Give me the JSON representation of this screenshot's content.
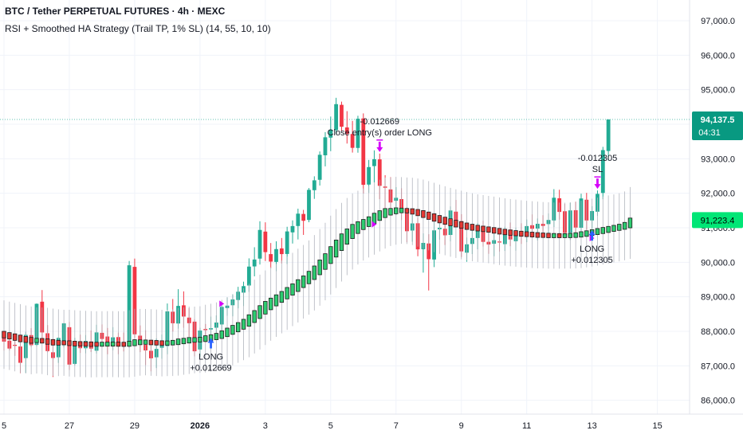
{
  "header": {
    "title": "BTC / Tether PERPETUAL FUTURES · 4h · MEXC",
    "strategy": "RSI + Smoothed HA Strategy (Trail TP, 1% SL) (14, 55, 10, 10)"
  },
  "colors": {
    "up": "#22ab94",
    "down": "#f23645",
    "ha_up": "#2ecc71",
    "ha_down": "#e53935",
    "wick": "#b2b5be",
    "long_arrow": "#2962ff",
    "exit_arrow": "#d500f9",
    "price_tag": "#089981",
    "ha_tag": "#00e676",
    "grid": "#f0f3fa",
    "text": "#131722"
  },
  "chart_data": {
    "type": "candlestick",
    "title": "BTC / Tether PERPETUAL FUTURES · 4h · MEXC",
    "ylim": [
      85600,
      97600
    ],
    "y_ticks": [
      "97,000.0",
      "96,000.0",
      "95,000.0",
      "94,000.0",
      "93,000.0",
      "92,000.0",
      "91,000.0",
      "90,000.0",
      "89,000.0",
      "88,000.0",
      "87,000.0",
      "86,000.0"
    ],
    "y_tick_values": [
      97000,
      96000,
      95000,
      94000,
      93000,
      92000,
      91000,
      90000,
      89000,
      88000,
      87000,
      86000
    ],
    "x_ticks": [
      {
        "label": "5",
        "bar": 0
      },
      {
        "label": "27",
        "bar": 12
      },
      {
        "label": "29",
        "bar": 24
      },
      {
        "label": "2026",
        "bar": 36
      },
      {
        "label": "3",
        "bar": 48
      },
      {
        "label": "5",
        "bar": 60
      },
      {
        "label": "7",
        "bar": 72
      },
      {
        "label": "9",
        "bar": 84
      },
      {
        "label": "11",
        "bar": 96
      },
      {
        "label": "13",
        "bar": 108
      },
      {
        "label": "15",
        "bar": 120
      }
    ],
    "last_price": {
      "value": 94137.5,
      "label": "94,137.5",
      "countdown": "04:31"
    },
    "ha_price": {
      "value": 91223.4,
      "label": "91,223.4"
    },
    "candles": [
      [
        87804,
        87933,
        87442,
        87701
      ],
      [
        87728,
        87939,
        87452,
        87500
      ],
      [
        87609,
        87784,
        87289,
        87578
      ],
      [
        87560,
        87694,
        86788,
        87087
      ],
      [
        87223,
        87985,
        86795,
        87896
      ],
      [
        87890,
        88091,
        87548,
        87597
      ],
      [
        87604,
        88806,
        87561,
        88797
      ],
      [
        88858,
        89195,
        87734,
        87967
      ],
      [
        87943,
        88180,
        87393,
        87427
      ],
      [
        87392,
        87785,
        86676,
        87226
      ],
      [
        87248,
        87827,
        87084,
        87808
      ],
      [
        87735,
        88238,
        87535,
        88230
      ],
      [
        88119,
        88270,
        86881,
        87036
      ],
      [
        87056,
        87809,
        87014,
        87707
      ],
      [
        87675,
        87905,
        87373,
        87510
      ],
      [
        87508,
        87891,
        87362,
        87722
      ],
      [
        87706,
        88025,
        87401,
        87498
      ],
      [
        87438,
        88189,
        87357,
        87968
      ],
      [
        87956,
        88199,
        87585,
        87778
      ],
      [
        87849,
        88097,
        87335,
        87643
      ],
      [
        87570,
        88119,
        87449,
        87825
      ],
      [
        87832,
        87963,
        87335,
        87626
      ],
      [
        87641,
        87964,
        87416,
        87586
      ],
      [
        87627,
        90038,
        87519,
        89913
      ],
      [
        89867,
        90107,
        87818,
        87913
      ],
      [
        87874,
        88170,
        87397,
        87644
      ],
      [
        87607,
        88030,
        87022,
        87446
      ],
      [
        87436,
        87708,
        86840,
        87217
      ],
      [
        87247,
        87794,
        86934,
        87489
      ],
      [
        87523,
        87908,
        87204,
        87614
      ],
      [
        87571,
        88806,
        87335,
        88577
      ],
      [
        88568,
        88936,
        87992,
        88233
      ],
      [
        88225,
        89220,
        88078,
        88736
      ],
      [
        88753,
        89157,
        88102,
        88428
      ],
      [
        88397,
        88674,
        87845,
        88235
      ],
      [
        88280,
        88350,
        87274,
        87421
      ],
      [
        87473,
        88102,
        87257,
        88022
      ],
      [
        88067,
        88211,
        87677,
        88035
      ],
      [
        88053,
        88426,
        87851,
        88090
      ],
      [
        88104,
        88461,
        87913,
        88254
      ],
      [
        88198,
        88837,
        87925,
        88709
      ],
      [
        88674,
        88981,
        88450,
        88744
      ],
      [
        88755,
        89071,
        88434,
        88923
      ],
      [
        88907,
        89289,
        88665,
        89148
      ],
      [
        89121,
        89438,
        88732,
        89309
      ],
      [
        89327,
        90114,
        89143,
        89875
      ],
      [
        89880,
        90436,
        89592,
        90080
      ],
      [
        90106,
        91189,
        89935,
        90937
      ],
      [
        90889,
        91158,
        90037,
        90294
      ],
      [
        90237,
        90558,
        89826,
        90020
      ],
      [
        90011,
        90609,
        89742,
        90383
      ],
      [
        90402,
        90704,
        89966,
        90237
      ],
      [
        90241,
        91029,
        89949,
        90894
      ],
      [
        90867,
        91214,
        90543,
        91049
      ],
      [
        91051,
        91553,
        90662,
        91409
      ],
      [
        91400,
        91519,
        90793,
        91203
      ],
      [
        91227,
        92152,
        91160,
        92099
      ],
      [
        92089,
        92491,
        91838,
        92375
      ],
      [
        92390,
        93212,
        92224,
        93115
      ],
      [
        93100,
        93771,
        92779,
        93622
      ],
      [
        93612,
        94223,
        93220,
        93834
      ],
      [
        93831,
        94766,
        93717,
        94582
      ],
      [
        94562,
        94655,
        93809,
        93928
      ],
      [
        93907,
        94380,
        93440,
        93723
      ],
      [
        93718,
        94097,
        93179,
        93316
      ],
      [
        93313,
        94245,
        93175,
        94160
      ],
      [
        94168,
        94314,
        91992,
        92246
      ],
      [
        92252,
        92966,
        92010,
        92759
      ],
      [
        92787,
        93244,
        92314,
        92987
      ],
      [
        92982,
        93150,
        91828,
        92215
      ],
      [
        92195,
        92524,
        91502,
        92160
      ],
      [
        92111,
        92466,
        91347,
        91733
      ],
      [
        91783,
        92178,
        91366,
        91869
      ],
      [
        91831,
        92145,
        91224,
        91478
      ],
      [
        91418,
        91598,
        90582,
        90900
      ],
      [
        90920,
        91375,
        90596,
        91126
      ],
      [
        91131,
        91290,
        90175,
        90374
      ],
      [
        90379,
        90838,
        89700,
        90562
      ],
      [
        90545,
        90813,
        89183,
        90090
      ],
      [
        90080,
        91173,
        89860,
        90925
      ],
      [
        90957,
        91346,
        90655,
        91001
      ],
      [
        90971,
        91254,
        90501,
        90782
      ],
      [
        90792,
        91618,
        90605,
        91501
      ],
      [
        91467,
        91808,
        91032,
        91200
      ],
      [
        91192,
        91394,
        90153,
        90316
      ],
      [
        90278,
        90717,
        90016,
        90521
      ],
      [
        90531,
        91008,
        90239,
        90703
      ],
      [
        90703,
        91136,
        90376,
        90924
      ],
      [
        90901,
        91203,
        90457,
        90591
      ],
      [
        90593,
        90877,
        90245,
        90516
      ],
      [
        90538,
        90850,
        90176,
        90641
      ],
      [
        90603,
        90853,
        90311,
        90573
      ],
      [
        90526,
        91030,
        90328,
        90896
      ],
      [
        90946,
        91152,
        90466,
        90661
      ],
      [
        90610,
        91005,
        90335,
        90895
      ],
      [
        90861,
        91130,
        90532,
        90767
      ],
      [
        90767,
        91239,
        90582,
        91049
      ],
      [
        91074,
        91388,
        90699,
        90971
      ],
      [
        90978,
        91269,
        90633,
        91115
      ],
      [
        91114,
        91364,
        90825,
        91053
      ],
      [
        91106,
        91414,
        90786,
        91226
      ],
      [
        91212,
        92119,
        91022,
        91870
      ],
      [
        91854,
        92102,
        91235,
        91459
      ],
      [
        91479,
        91694,
        90802,
        90852
      ],
      [
        90855,
        91726,
        90645,
        91503
      ],
      [
        91509,
        91754,
        90713,
        91006
      ],
      [
        91001,
        91987,
        90844,
        91849
      ],
      [
        91812,
        92011,
        90944,
        91212
      ],
      [
        91213,
        91626,
        90973,
        91485
      ],
      [
        91466,
        92081,
        91343,
        91982
      ],
      [
        92009,
        93345,
        91827,
        93251
      ],
      [
        93225,
        94124,
        92947,
        94137.5
      ]
    ],
    "smoothed_ha": [
      [
        87942,
        87867,
        false
      ],
      [
        87904,
        87834,
        false
      ],
      [
        87869,
        87795,
        false
      ],
      [
        87832,
        87753,
        false
      ],
      [
        87793,
        87735,
        false
      ],
      [
        87764,
        87711,
        false
      ],
      [
        87738,
        87733,
        true
      ],
      [
        87735,
        87716,
        false
      ],
      [
        87725,
        87683,
        false
      ],
      [
        87704,
        87659,
        false
      ],
      [
        87681,
        87657,
        false
      ],
      [
        87669,
        87665,
        false
      ],
      [
        87667,
        87644,
        false
      ],
      [
        87656,
        87632,
        false
      ],
      [
        87644,
        87632,
        false
      ],
      [
        87638,
        87625,
        false
      ],
      [
        87631,
        87620,
        false
      ],
      [
        87626,
        87623,
        false
      ],
      [
        87624,
        87628,
        true
      ],
      [
        87626,
        87629,
        true
      ],
      [
        87628,
        87631,
        true
      ],
      [
        87629,
        87623,
        false
      ],
      [
        87626,
        87620,
        false
      ],
      [
        87623,
        87656,
        true
      ],
      [
        87640,
        87698,
        true
      ],
      [
        87669,
        87694,
        true
      ],
      [
        87681,
        87691,
        true
      ],
      [
        87686,
        87667,
        false
      ],
      [
        87676,
        87659,
        false
      ],
      [
        87668,
        87648,
        false
      ],
      [
        87658,
        87664,
        true
      ],
      [
        87661,
        87681,
        true
      ],
      [
        87671,
        87721,
        true
      ],
      [
        87696,
        87740,
        true
      ],
      [
        87718,
        87762,
        true
      ],
      [
        87740,
        87759,
        true
      ],
      [
        87750,
        87771,
        true
      ],
      [
        87761,
        87814,
        true
      ],
      [
        87787,
        87843,
        true
      ],
      [
        87815,
        87882,
        true
      ],
      [
        87849,
        87957,
        true
      ],
      [
        87903,
        88035,
        true
      ],
      [
        87969,
        88114,
        true
      ],
      [
        88042,
        88195,
        true
      ],
      [
        88118,
        88290,
        true
      ],
      [
        88204,
        88421,
        true
      ],
      [
        88312,
        88543,
        true
      ],
      [
        88428,
        88686,
        true
      ],
      [
        88557,
        88809,
        true
      ],
      [
        88683,
        88904,
        true
      ],
      [
        88794,
        88999,
        true
      ],
      [
        88896,
        89097,
        true
      ],
      [
        88997,
        89212,
        true
      ],
      [
        89104,
        89318,
        true
      ],
      [
        89211,
        89438,
        true
      ],
      [
        89325,
        89547,
        true
      ],
      [
        89436,
        89680,
        true
      ],
      [
        89558,
        89835,
        true
      ],
      [
        89697,
        90009,
        true
      ],
      [
        89853,
        90190,
        true
      ],
      [
        90022,
        90396,
        true
      ],
      [
        90209,
        90587,
        true
      ],
      [
        90398,
        90765,
        true
      ],
      [
        90582,
        90908,
        true
      ],
      [
        90745,
        91040,
        true
      ],
      [
        90892,
        91118,
        true
      ],
      [
        91005,
        91183,
        true
      ],
      [
        91094,
        91261,
        true
      ],
      [
        91177,
        91363,
        true
      ],
      [
        91270,
        91436,
        true
      ],
      [
        91353,
        91499,
        true
      ],
      [
        91426,
        91502,
        true
      ],
      [
        91464,
        91520,
        true
      ],
      [
        91492,
        91512,
        true
      ],
      [
        91502,
        91485,
        false
      ],
      [
        91494,
        91453,
        false
      ],
      [
        91473,
        91408,
        false
      ],
      [
        91441,
        91355,
        false
      ],
      [
        91398,
        91300,
        false
      ],
      [
        91349,
        91247,
        false
      ],
      [
        91298,
        91200,
        false
      ],
      [
        91249,
        91158,
        false
      ],
      [
        91203,
        91115,
        false
      ],
      [
        91159,
        91080,
        false
      ],
      [
        91120,
        91042,
        false
      ],
      [
        91081,
        91009,
        false
      ],
      [
        91045,
        90985,
        false
      ],
      [
        91015,
        90965,
        false
      ],
      [
        90990,
        90947,
        false
      ],
      [
        90968,
        90928,
        false
      ],
      [
        90948,
        90900,
        false
      ],
      [
        90924,
        90875,
        false
      ],
      [
        90899,
        90857,
        false
      ],
      [
        90878,
        90841,
        false
      ],
      [
        90860,
        90826,
        false
      ],
      [
        90843,
        90811,
        false
      ],
      [
        90827,
        90802,
        false
      ],
      [
        90815,
        90791,
        false
      ],
      [
        90803,
        90779,
        false
      ],
      [
        90791,
        90777,
        false
      ],
      [
        90784,
        90769,
        false
      ],
      [
        90777,
        90770,
        true
      ],
      [
        90774,
        90769,
        false
      ],
      [
        90771,
        90773,
        true
      ],
      [
        90772,
        90781,
        true
      ],
      [
        90777,
        90799,
        true
      ],
      [
        90788,
        90828,
        true
      ],
      [
        90808,
        90855,
        true
      ],
      [
        90832,
        90887,
        true
      ],
      [
        90860,
        90920,
        true
      ],
      [
        90890,
        90951,
        true
      ],
      [
        90921,
        90982,
        true
      ],
      [
        90952,
        91012,
        true
      ],
      [
        90982,
        91045,
        true
      ],
      [
        91013,
        91098,
        true
      ],
      [
        91056,
        91223.4,
        true
      ]
    ],
    "trades": [
      {
        "side": "long",
        "entry_bar": 38,
        "label1": "LONG",
        "label2": "+0.012669"
      },
      {
        "side": "close",
        "bar": 69,
        "label1": "-0.012669",
        "label2": "Close entry(s) order LONG"
      },
      {
        "side": "long",
        "entry_bar": 108,
        "label1": "LONG",
        "label2": "+0.012305"
      },
      {
        "side": "sl",
        "bar": 109,
        "label1": "-0.012305",
        "label2": "SL"
      }
    ],
    "signal_markers": [
      {
        "bar": 40,
        "value": 88800,
        "color": "#d500f9"
      },
      {
        "bar": 68,
        "value": 91100,
        "color": "#d500f9"
      },
      {
        "bar": 108,
        "value": 90700,
        "color": "#d500f9"
      }
    ]
  }
}
